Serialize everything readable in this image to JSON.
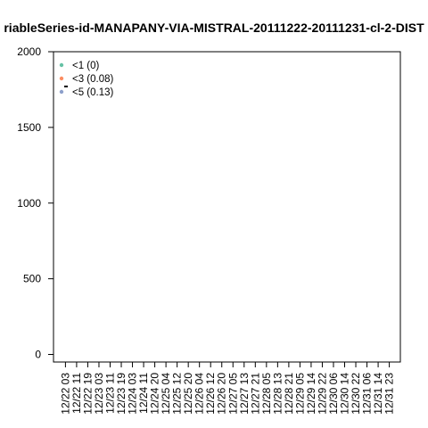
{
  "chart_data": {
    "type": "scatter",
    "title": "riableSeries-id-MANAPANY-VIA-MISTRAL-20111222-20111231-cl-2-DIST",
    "xlabel": "",
    "ylabel": "",
    "ylim": [
      -50,
      2000
    ],
    "y_ticks": [
      "0",
      "500",
      "1000",
      "1500",
      "2000"
    ],
    "y_tick_values": [
      0,
      500,
      1000,
      1500,
      2000
    ],
    "categories": [
      "12/22 03",
      "12/22 11",
      "12/22 19",
      "12/23 03",
      "12/23 11",
      "12/23 19",
      "12/24 03",
      "12/24 11",
      "12/24 20",
      "12/25 04",
      "12/25 12",
      "12/25 20",
      "12/26 04",
      "12/26 12",
      "12/26 20",
      "12/27 05",
      "12/27 13",
      "12/27 21",
      "12/28 05",
      "12/28 13",
      "12/28 21",
      "12/29 05",
      "12/29 14",
      "12/29 22",
      "12/30 06",
      "12/30 14",
      "12/30 22",
      "12/31 06",
      "12/31 14",
      "12/31 23"
    ],
    "series": [
      {
        "name": "<1 (0)",
        "color": "#66c2a5",
        "values": []
      },
      {
        "name": "<3 (0.08)",
        "color": "#fc8d62",
        "values": []
      },
      {
        "name": "<5 (0.13)",
        "color": "#8da0cb",
        "values": []
      }
    ],
    "grid": false,
    "legend_position": "top-left"
  }
}
